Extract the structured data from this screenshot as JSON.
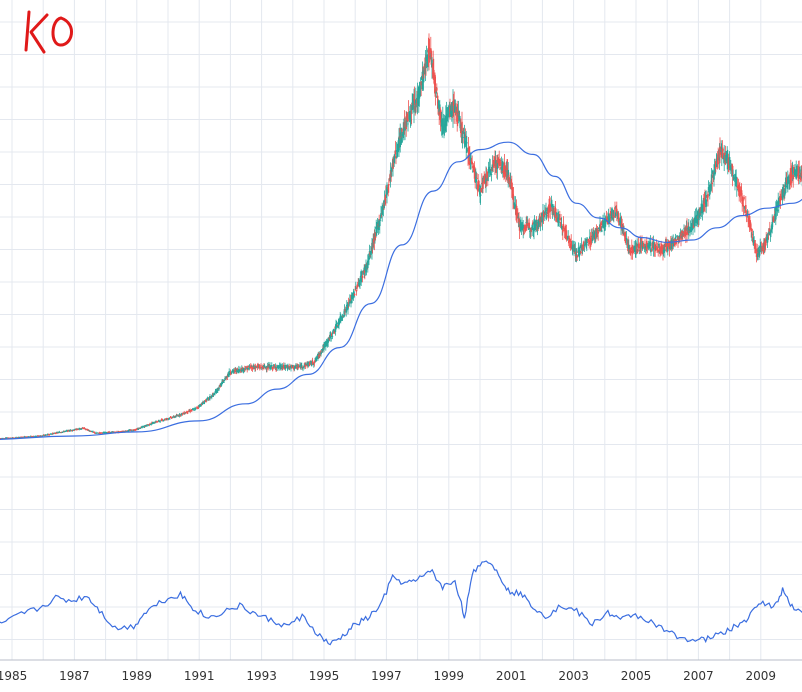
{
  "chart_data": {
    "type": "candlestick",
    "ticker": "KO",
    "x_tick_labels": [
      "1985",
      "1987",
      "1989",
      "1991",
      "1993",
      "1995",
      "1997",
      "1999",
      "2001",
      "2003",
      "2005",
      "2007",
      "2009"
    ],
    "grid": true,
    "colors": {
      "up": "#26a69a",
      "down": "#ef5350",
      "moving_average": "#3b6ee0",
      "indicator": "#3b6ee0",
      "grid": "#e4e8ef",
      "ticker_annotation": "#e01919"
    },
    "price_series": [
      {
        "t": 1984.0,
        "p": 8.5
      },
      {
        "t": 1985.0,
        "p": 9
      },
      {
        "t": 1986.0,
        "p": 10
      },
      {
        "t": 1986.6,
        "p": 11.5
      },
      {
        "t": 1987.3,
        "p": 13
      },
      {
        "t": 1987.7,
        "p": 11
      },
      {
        "t": 1988.5,
        "p": 11.5
      },
      {
        "t": 1989.0,
        "p": 12.5
      },
      {
        "t": 1989.6,
        "p": 15.5
      },
      {
        "t": 1990.3,
        "p": 18
      },
      {
        "t": 1990.9,
        "p": 21
      },
      {
        "t": 1991.5,
        "p": 27
      },
      {
        "t": 1992.0,
        "p": 36
      },
      {
        "t": 1992.7,
        "p": 38
      },
      {
        "t": 1993.5,
        "p": 38
      },
      {
        "t": 1994.2,
        "p": 38
      },
      {
        "t": 1994.7,
        "p": 40
      },
      {
        "t": 1995.3,
        "p": 52
      },
      {
        "t": 1995.9,
        "p": 66
      },
      {
        "t": 1996.4,
        "p": 80
      },
      {
        "t": 1996.9,
        "p": 103
      },
      {
        "t": 1997.3,
        "p": 125
      },
      {
        "t": 1997.6,
        "p": 137
      },
      {
        "t": 1998.0,
        "p": 147
      },
      {
        "t": 1998.4,
        "p": 168
      },
      {
        "t": 1998.8,
        "p": 137
      },
      {
        "t": 1999.2,
        "p": 145
      },
      {
        "t": 1999.6,
        "p": 128
      },
      {
        "t": 2000.0,
        "p": 110
      },
      {
        "t": 2000.5,
        "p": 122
      },
      {
        "t": 2000.9,
        "p": 118
      },
      {
        "t": 2001.3,
        "p": 95
      },
      {
        "t": 2001.8,
        "p": 96
      },
      {
        "t": 2002.3,
        "p": 104
      },
      {
        "t": 2002.8,
        "p": 92
      },
      {
        "t": 2003.1,
        "p": 84
      },
      {
        "t": 2003.6,
        "p": 91
      },
      {
        "t": 2004.0,
        "p": 97
      },
      {
        "t": 2004.4,
        "p": 102
      },
      {
        "t": 2004.8,
        "p": 86
      },
      {
        "t": 2005.3,
        "p": 88
      },
      {
        "t": 2005.9,
        "p": 86
      },
      {
        "t": 2006.4,
        "p": 91
      },
      {
        "t": 2006.9,
        "p": 97
      },
      {
        "t": 2007.3,
        "p": 108
      },
      {
        "t": 2007.7,
        "p": 126
      },
      {
        "t": 2008.0,
        "p": 122
      },
      {
        "t": 2008.5,
        "p": 104
      },
      {
        "t": 2008.9,
        "p": 84
      },
      {
        "t": 2009.2,
        "p": 90
      },
      {
        "t": 2009.6,
        "p": 105
      },
      {
        "t": 2010.0,
        "p": 118
      },
      {
        "t": 2010.5,
        "p": 116
      },
      {
        "t": 2010.8,
        "p": 112
      }
    ],
    "moving_average": [
      {
        "t": 1984.0,
        "p": 8.3
      },
      {
        "t": 1987.0,
        "p": 9.8
      },
      {
        "t": 1989.0,
        "p": 11.5
      },
      {
        "t": 1991.0,
        "p": 16
      },
      {
        "t": 1992.5,
        "p": 23
      },
      {
        "t": 1993.5,
        "p": 29
      },
      {
        "t": 1994.5,
        "p": 35
      },
      {
        "t": 1995.5,
        "p": 46
      },
      {
        "t": 1996.5,
        "p": 64
      },
      {
        "t": 1997.5,
        "p": 88
      },
      {
        "t": 1998.5,
        "p": 110
      },
      {
        "t": 1999.3,
        "p": 122
      },
      {
        "t": 2000.0,
        "p": 127
      },
      {
        "t": 2000.9,
        "p": 130
      },
      {
        "t": 2001.7,
        "p": 125
      },
      {
        "t": 2002.4,
        "p": 116
      },
      {
        "t": 2003.1,
        "p": 105
      },
      {
        "t": 2003.8,
        "p": 99
      },
      {
        "t": 2004.5,
        "p": 95
      },
      {
        "t": 2005.2,
        "p": 91
      },
      {
        "t": 2006.0,
        "p": 89
      },
      {
        "t": 2006.8,
        "p": 90
      },
      {
        "t": 2007.6,
        "p": 95
      },
      {
        "t": 2008.4,
        "p": 100
      },
      {
        "t": 2009.2,
        "p": 103
      },
      {
        "t": 2010.0,
        "p": 105
      },
      {
        "t": 2010.8,
        "p": 110
      }
    ],
    "indicator_series": [
      {
        "t": 1984.0,
        "v": 0.3
      },
      {
        "t": 1984.8,
        "v": 0.34
      },
      {
        "t": 1985.3,
        "v": 0.42
      },
      {
        "t": 1985.9,
        "v": 0.48
      },
      {
        "t": 1986.4,
        "v": 0.58
      },
      {
        "t": 1986.9,
        "v": 0.55
      },
      {
        "t": 1987.4,
        "v": 0.6
      },
      {
        "t": 1987.8,
        "v": 0.46
      },
      {
        "t": 1988.3,
        "v": 0.28
      },
      {
        "t": 1988.9,
        "v": 0.3
      },
      {
        "t": 1989.3,
        "v": 0.45
      },
      {
        "t": 1989.8,
        "v": 0.55
      },
      {
        "t": 1990.4,
        "v": 0.62
      },
      {
        "t": 1990.8,
        "v": 0.48
      },
      {
        "t": 1991.3,
        "v": 0.38
      },
      {
        "t": 1991.8,
        "v": 0.45
      },
      {
        "t": 1992.3,
        "v": 0.5
      },
      {
        "t": 1992.8,
        "v": 0.42
      },
      {
        "t": 1993.3,
        "v": 0.36
      },
      {
        "t": 1993.8,
        "v": 0.3
      },
      {
        "t": 1994.3,
        "v": 0.4
      },
      {
        "t": 1994.8,
        "v": 0.22
      },
      {
        "t": 1995.2,
        "v": 0.12
      },
      {
        "t": 1995.6,
        "v": 0.2
      },
      {
        "t": 1996.0,
        "v": 0.32
      },
      {
        "t": 1996.4,
        "v": 0.38
      },
      {
        "t": 1996.8,
        "v": 0.5
      },
      {
        "t": 1997.2,
        "v": 0.78
      },
      {
        "t": 1997.6,
        "v": 0.72
      },
      {
        "t": 1998.0,
        "v": 0.75
      },
      {
        "t": 1998.4,
        "v": 0.86
      },
      {
        "t": 1998.8,
        "v": 0.68
      },
      {
        "t": 1999.2,
        "v": 0.75
      },
      {
        "t": 1999.5,
        "v": 0.4
      },
      {
        "t": 1999.8,
        "v": 0.85
      },
      {
        "t": 2000.2,
        "v": 0.96
      },
      {
        "t": 2000.6,
        "v": 0.82
      },
      {
        "t": 2000.9,
        "v": 0.65
      },
      {
        "t": 2001.3,
        "v": 0.62
      },
      {
        "t": 2001.7,
        "v": 0.5
      },
      {
        "t": 2002.1,
        "v": 0.4
      },
      {
        "t": 2002.6,
        "v": 0.5
      },
      {
        "t": 2003.1,
        "v": 0.45
      },
      {
        "t": 2003.6,
        "v": 0.32
      },
      {
        "t": 2004.1,
        "v": 0.44
      },
      {
        "t": 2004.5,
        "v": 0.36
      },
      {
        "t": 2004.9,
        "v": 0.42
      },
      {
        "t": 2005.4,
        "v": 0.36
      },
      {
        "t": 2005.9,
        "v": 0.26
      },
      {
        "t": 2006.4,
        "v": 0.2
      },
      {
        "t": 2006.9,
        "v": 0.16
      },
      {
        "t": 2007.3,
        "v": 0.18
      },
      {
        "t": 2007.8,
        "v": 0.24
      },
      {
        "t": 2008.2,
        "v": 0.3
      },
      {
        "t": 2008.6,
        "v": 0.38
      },
      {
        "t": 2009.0,
        "v": 0.55
      },
      {
        "t": 2009.4,
        "v": 0.48
      },
      {
        "t": 2009.7,
        "v": 0.66
      },
      {
        "t": 2010.0,
        "v": 0.5
      },
      {
        "t": 2010.4,
        "v": 0.42
      },
      {
        "t": 2010.8,
        "v": 0.32
      }
    ]
  }
}
